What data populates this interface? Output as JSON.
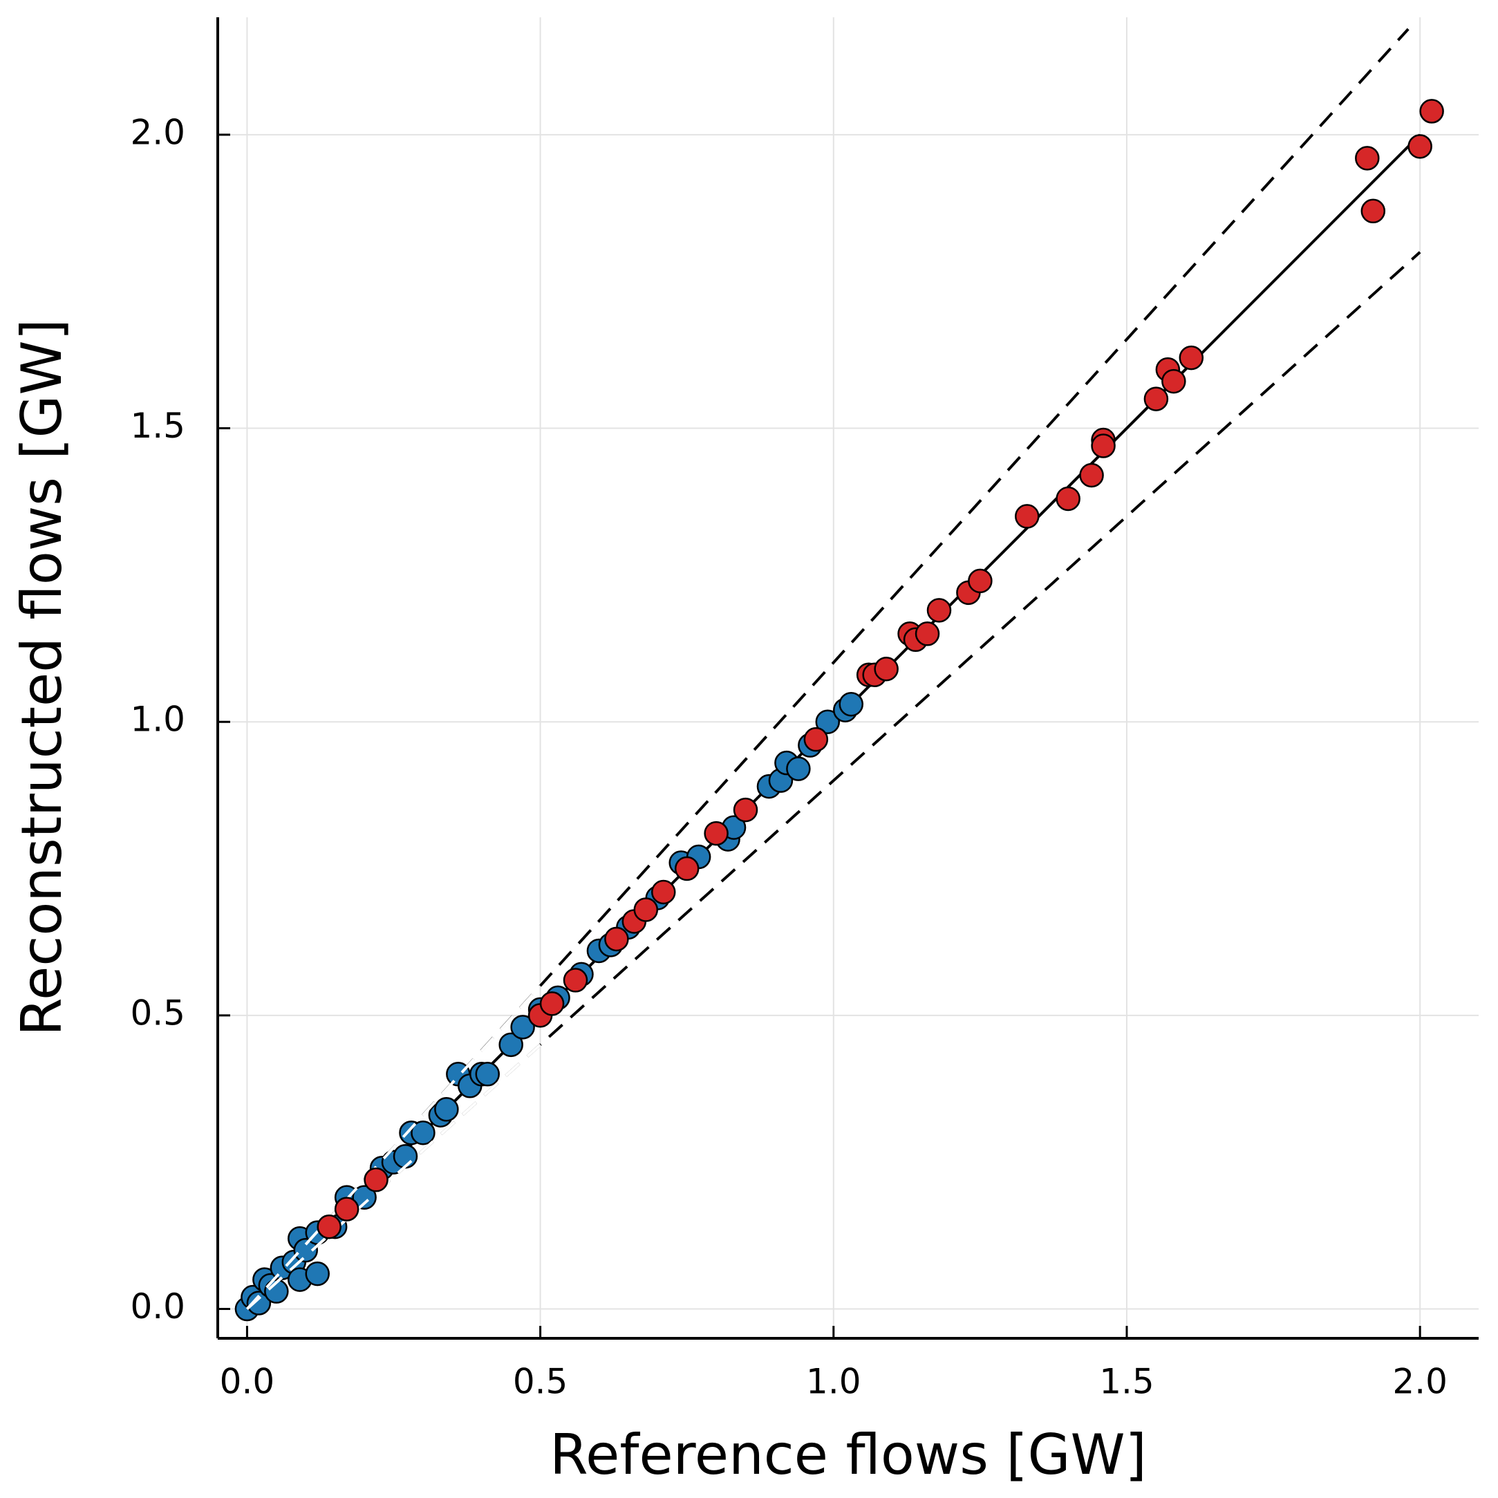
{
  "chart_data": {
    "type": "scatter",
    "xlabel": "Reference flows [GW]",
    "ylabel": "Reconstructed flows [GW]",
    "xlim": [
      -0.05,
      2.1
    ],
    "ylim": [
      -0.05,
      2.2
    ],
    "xticks": [
      {
        "value": 0,
        "label": "0.0"
      },
      0.5,
      {
        "value": 1,
        "label": "1.0"
      },
      1.5,
      {
        "value": 2,
        "label": "2.0"
      }
    ],
    "yticks": [
      {
        "value": 0,
        "label": "0.0"
      },
      0.5,
      {
        "value": 1,
        "label": "1.0"
      },
      1.5,
      {
        "value": 2,
        "label": "2.0"
      }
    ],
    "grid": true,
    "lines": [
      {
        "color": "#000000",
        "dashed": false,
        "x": [
          0,
          2
        ],
        "values": [
          0,
          2
        ]
      },
      {
        "color": "#000000",
        "dashed": true,
        "x": [
          0,
          1.98
        ],
        "values": [
          0,
          2.18
        ]
      },
      {
        "color": "#000000",
        "dashed": true,
        "x": [
          0,
          2
        ],
        "values": [
          0,
          1.8
        ]
      },
      {
        "color": "#ffffff",
        "dashed": true,
        "x": [
          0,
          0.5
        ],
        "values": [
          0,
          0.55
        ]
      },
      {
        "color": "#ffffff",
        "dashed": true,
        "x": [
          0,
          0.5
        ],
        "values": [
          0,
          0.45
        ]
      }
    ],
    "series": [
      {
        "color": "#1f77b4",
        "x": [
          0,
          0.01,
          0.02,
          0.03,
          0.04,
          0.05,
          0.06,
          0.08,
          0.09,
          0.09,
          0.1,
          0.12,
          0.12,
          0.15,
          0.17,
          0.2,
          0.23,
          0.25,
          0.27,
          0.28,
          0.3,
          0.33,
          0.34,
          0.36,
          0.38,
          0.4,
          0.41,
          0.45,
          0.47,
          0.5,
          0.53,
          0.57,
          0.6,
          0.62,
          0.65,
          0.7,
          0.74,
          0.77,
          0.82,
          0.83,
          0.89,
          0.91,
          0.92,
          0.94,
          0.96,
          0.99,
          1.02,
          1.03
        ],
        "values": [
          0,
          0.02,
          0.01,
          0.05,
          0.04,
          0.03,
          0.07,
          0.08,
          0.05,
          0.12,
          0.1,
          0.13,
          0.06,
          0.14,
          0.19,
          0.19,
          0.24,
          0.25,
          0.26,
          0.3,
          0.3,
          0.33,
          0.34,
          0.4,
          0.38,
          0.4,
          0.4,
          0.45,
          0.48,
          0.51,
          0.53,
          0.57,
          0.61,
          0.62,
          0.65,
          0.7,
          0.76,
          0.77,
          0.8,
          0.82,
          0.89,
          0.9,
          0.93,
          0.92,
          0.96,
          1.0,
          1.02,
          1.03
        ]
      },
      {
        "color": "#d62728",
        "x": [
          0.14,
          0.17,
          0.22,
          0.5,
          0.52,
          0.56,
          0.63,
          0.66,
          0.68,
          0.71,
          0.75,
          0.8,
          0.85,
          0.97,
          1.06,
          1.07,
          1.09,
          1.13,
          1.14,
          1.16,
          1.18,
          1.23,
          1.25,
          1.33,
          1.4,
          1.44,
          1.46,
          1.46,
          1.55,
          1.57,
          1.58,
          1.61,
          1.91,
          1.92,
          2.0,
          2.02
        ],
        "values": [
          0.14,
          0.17,
          0.22,
          0.5,
          0.52,
          0.56,
          0.63,
          0.66,
          0.68,
          0.71,
          0.75,
          0.81,
          0.85,
          0.97,
          1.08,
          1.08,
          1.09,
          1.15,
          1.14,
          1.15,
          1.19,
          1.22,
          1.24,
          1.35,
          1.38,
          1.42,
          1.48,
          1.47,
          1.55,
          1.6,
          1.58,
          1.62,
          1.96,
          1.87,
          1.98,
          2.04
        ]
      }
    ]
  }
}
